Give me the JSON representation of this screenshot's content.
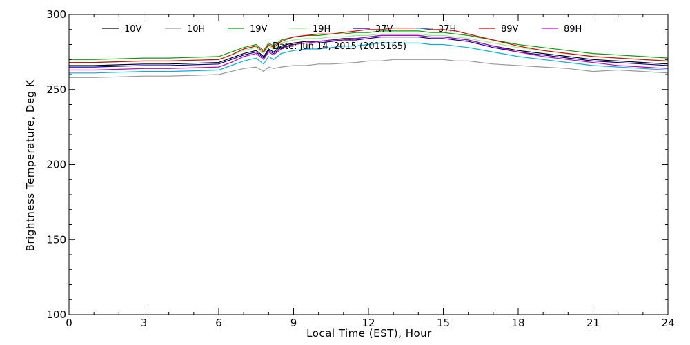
{
  "chart_data": {
    "type": "line",
    "title": "",
    "annotation": "Date: Jun 14, 2015 (2015165)",
    "xlabel": "Local Time (EST), Hour",
    "ylabel": "Brightness Temperature, Deg K",
    "xlim": [
      0,
      24
    ],
    "ylim": [
      100,
      300
    ],
    "xticks": [
      0,
      3,
      6,
      9,
      12,
      15,
      18,
      21,
      24
    ],
    "yticks": [
      100,
      150,
      200,
      250,
      300
    ],
    "grid": false,
    "legend_position": "top",
    "x": [
      0,
      1,
      2,
      3,
      4,
      5,
      6,
      6.5,
      7,
      7.5,
      7.8,
      8,
      8.2,
      8.5,
      9,
      9.5,
      10,
      10.5,
      11,
      11.5,
      12,
      12.5,
      13,
      13.5,
      14,
      14.5,
      15,
      15.5,
      16,
      17,
      18,
      19,
      20,
      21,
      22,
      23,
      24
    ],
    "series": [
      {
        "name": "10V",
        "color": "#000000",
        "values": [
          266,
          266,
          266.5,
          267,
          267,
          267.5,
          268,
          271,
          274,
          276,
          272,
          277,
          275,
          279,
          281,
          282,
          282,
          283,
          284,
          284,
          285,
          286,
          286,
          286,
          286,
          285,
          285,
          284,
          283,
          279,
          276,
          274,
          272,
          270,
          269,
          268,
          267
        ]
      },
      {
        "name": "10H",
        "color": "#999999",
        "values": [
          258,
          258,
          258.5,
          259,
          259,
          259.5,
          260,
          262,
          264,
          265,
          262,
          265,
          264,
          265,
          266,
          266,
          267,
          267,
          267.5,
          268,
          269,
          269,
          270,
          270,
          270,
          270,
          270,
          269,
          269,
          267,
          266,
          265,
          264,
          262,
          263,
          262,
          261
        ]
      },
      {
        "name": "19V",
        "color": "#00a000",
        "values": [
          270,
          270,
          270.5,
          271,
          271,
          271.5,
          272,
          275,
          278,
          280,
          276,
          281,
          279,
          283,
          285,
          286,
          286,
          287,
          287,
          288,
          288,
          289,
          289,
          289,
          289,
          288,
          288,
          287,
          286,
          283,
          280,
          278,
          276,
          274,
          273,
          272,
          271
        ]
      },
      {
        "name": "19H",
        "color": "#90ee90",
        "values": [
          268,
          268,
          268.5,
          269,
          269,
          269.5,
          270,
          273,
          276,
          278,
          274,
          279,
          277,
          281,
          283,
          284,
          284,
          285,
          285,
          286,
          286,
          287,
          287,
          287,
          287,
          286,
          286,
          285,
          284,
          281,
          278,
          276,
          274,
          272,
          271,
          270,
          269
        ]
      },
      {
        "name": "37V",
        "color": "#0000a0",
        "values": [
          265,
          265,
          265.5,
          266,
          266,
          266.5,
          267,
          270,
          273,
          275,
          271,
          276,
          274,
          278,
          280,
          281,
          281,
          282,
          283,
          283,
          284,
          285,
          285,
          285,
          285,
          284,
          284,
          283,
          282,
          278,
          275,
          273,
          271,
          269,
          268,
          267,
          266
        ]
      },
      {
        "name": "37H",
        "color": "#00b0e0",
        "values": [
          261,
          261,
          261.5,
          262,
          262,
          262.5,
          263,
          266,
          269,
          271,
          267,
          272,
          270,
          274,
          276,
          277,
          277,
          278,
          279,
          279,
          280,
          281,
          281,
          281,
          281,
          280,
          280,
          279,
          278,
          275,
          272,
          270,
          268,
          266,
          265,
          264,
          263
        ]
      },
      {
        "name": "89V",
        "color": "#e00000",
        "values": [
          268,
          268,
          268.5,
          269,
          269,
          269.5,
          270,
          273,
          277,
          279,
          275,
          280,
          278,
          282,
          285,
          286,
          287,
          287,
          288,
          289,
          290,
          290,
          291,
          291,
          291,
          290,
          290,
          289,
          287,
          283,
          279,
          276,
          274,
          272,
          271,
          270,
          269
        ]
      },
      {
        "name": "89H",
        "color": "#c000c0",
        "values": [
          263,
          263,
          263.5,
          264,
          264,
          264.5,
          265,
          268,
          272,
          274,
          270,
          275,
          273,
          277,
          280,
          281,
          282,
          283,
          283,
          284,
          285,
          286,
          286,
          286,
          286,
          285,
          285,
          284,
          283,
          279,
          275,
          272,
          270,
          268,
          266,
          265,
          264
        ]
      }
    ]
  }
}
